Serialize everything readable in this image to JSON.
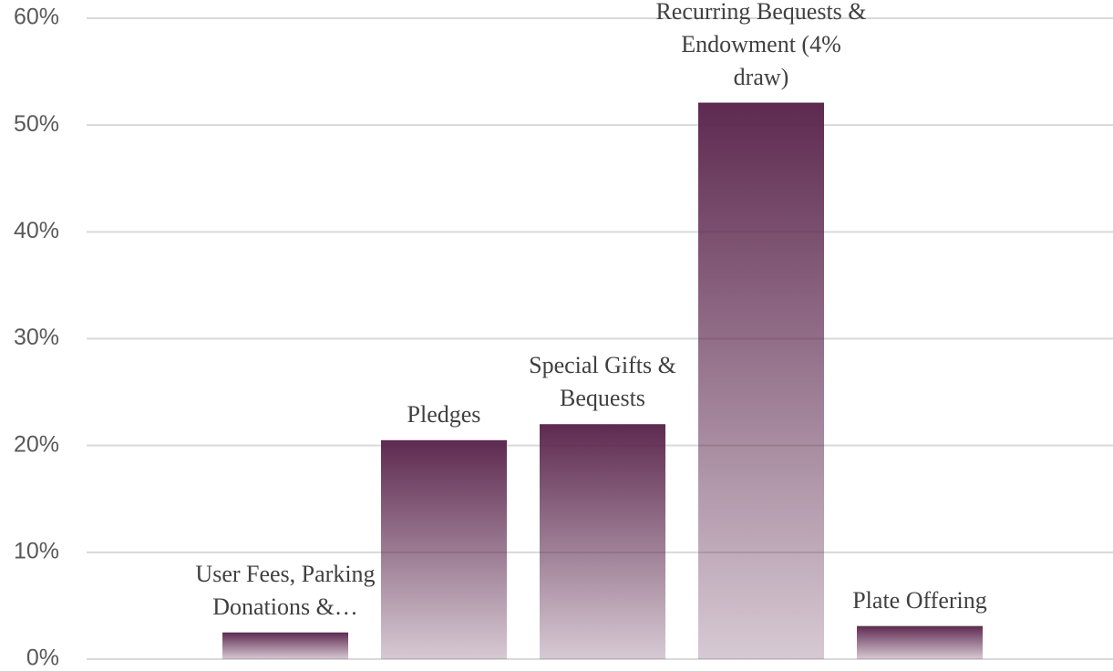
{
  "chart_data": {
    "type": "bar",
    "categories": [
      "User Fees, Parking Donations &…",
      "Pledges",
      "Special Gifts & Bequests",
      "Recurring Bequests & Endowment (4% draw)",
      "Plate Offering"
    ],
    "values": [
      2.5,
      20.5,
      22,
      52.1,
      3.1
    ],
    "color": "#5e2a50",
    "ylim": [
      0,
      60
    ],
    "yticks": [
      {
        "value": 0,
        "label": "0%"
      },
      {
        "value": 10,
        "label": "10%"
      },
      {
        "value": 20,
        "label": "20%"
      },
      {
        "value": 30,
        "label": "30%"
      },
      {
        "value": 40,
        "label": "40%"
      },
      {
        "value": 50,
        "label": "50%"
      },
      {
        "value": 60,
        "label": "60%"
      }
    ],
    "grid": true
  }
}
